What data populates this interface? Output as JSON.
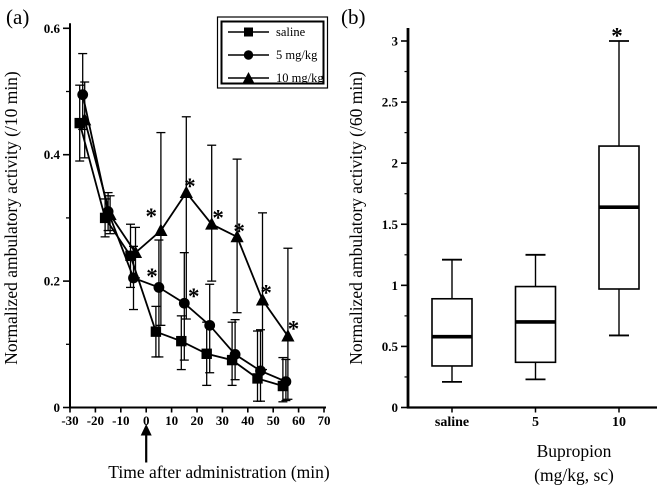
{
  "figure": {
    "panel_a_label": "(a)",
    "panel_b_label": "(b)",
    "background": "#ffffff",
    "ink": "#000000"
  },
  "chart_data": [
    {
      "id": "panel_a",
      "type": "line",
      "title": "",
      "xlabel": "Time after administration (min)",
      "ylabel": "Normalized ambulatory activity (/10 min)",
      "xlim": [
        -30,
        70
      ],
      "ylim": [
        0,
        0.6
      ],
      "xticks": [
        -30,
        -20,
        -10,
        0,
        10,
        20,
        30,
        40,
        50,
        60,
        70
      ],
      "xtick_labels": [
        "-30",
        "-20",
        "-10",
        "0",
        "10",
        "20",
        "30",
        "40",
        "50",
        "60",
        "70"
      ],
      "yticks": [
        0,
        0.2,
        0.4,
        0.6
      ],
      "ytick_labels": [
        "0",
        "0.2",
        "0.4",
        "0.6"
      ],
      "yticks_minor": [
        0.1,
        0.3,
        0.5
      ],
      "grid": false,
      "legend_position": "top-right",
      "injection_arrow_x": 0,
      "x": [
        -25,
        -15,
        -5,
        5,
        15,
        25,
        35,
        45,
        55
      ],
      "series": [
        {
          "name": "saline",
          "marker": "square",
          "values": [
            0.45,
            0.3,
            0.24,
            0.12,
            0.105,
            0.085,
            0.075,
            0.046,
            0.034
          ],
          "err_up": [
            0.06,
            0.03,
            0.05,
            0.04,
            0.04,
            0.05,
            0.06,
            0.075,
            0.045
          ],
          "err_down": [
            0.06,
            0.03,
            0.05,
            0.04,
            0.045,
            0.05,
            0.04,
            0.036,
            0.025
          ]
        },
        {
          "name": "5 mg/kg",
          "marker": "circle",
          "values": [
            0.495,
            0.31,
            0.205,
            0.19,
            0.165,
            0.13,
            0.084,
            0.058,
            0.041
          ],
          "err_up": [
            0.065,
            0.03,
            0.05,
            0.075,
            0.08,
            0.065,
            0.055,
            0.065,
            0.035
          ],
          "err_down": [
            0.055,
            0.03,
            0.05,
            0.11,
            0.09,
            0.075,
            0.04,
            0.048,
            0.03
          ]
        },
        {
          "name": "10 mg/kg",
          "marker": "triangle",
          "values": [
            0.455,
            0.305,
            0.245,
            0.28,
            0.34,
            0.29,
            0.27,
            0.17,
            0.113
          ],
          "err_up": [
            0.06,
            0.03,
            0.04,
            0.155,
            0.12,
            0.125,
            0.123,
            0.138,
            0.139
          ],
          "err_down": [
            0.06,
            0.03,
            0.04,
            0.15,
            0.2,
            0.09,
            0.12,
            0.11,
            0.1
          ]
        }
      ],
      "significance": [
        {
          "series": "5 mg/kg",
          "x": 2.3,
          "y": 0.213
        },
        {
          "series": "5 mg/kg",
          "x": 18.7,
          "y": 0.181
        },
        {
          "series": "10 mg/kg",
          "x": 2.0,
          "y": 0.308
        },
        {
          "series": "10 mg/kg",
          "x": 17.2,
          "y": 0.355
        },
        {
          "series": "10 mg/kg",
          "x": 28.3,
          "y": 0.305
        },
        {
          "series": "10 mg/kg",
          "x": 36.6,
          "y": 0.284
        },
        {
          "series": "10 mg/kg",
          "x": 47.2,
          "y": 0.187
        },
        {
          "series": "10 mg/kg",
          "x": 58.0,
          "y": 0.13
        }
      ]
    },
    {
      "id": "panel_b",
      "type": "box",
      "title": "",
      "xlabel": "Bupropion (mg/kg, sc)",
      "xlabel_lines": [
        "Bupropion",
        "(mg/kg, sc)"
      ],
      "ylabel": "Normalized ambulatory activity (/60 min)",
      "ylim": [
        0,
        3
      ],
      "yticks": [
        0,
        0.5,
        1,
        1.5,
        2,
        2.5,
        3
      ],
      "ytick_labels": [
        "0",
        "0.5",
        "1",
        "1.5",
        "2",
        "2.5",
        "3"
      ],
      "yticks_minor": [
        0.25,
        0.75,
        1.25,
        1.75,
        2.25,
        2.75
      ],
      "grid": false,
      "categories": [
        "saline",
        "5",
        "10"
      ],
      "boxes": [
        {
          "category": "saline",
          "whisker_low": 0.21,
          "q1": 0.34,
          "median": 0.58,
          "q3": 0.89,
          "whisker_high": 1.21,
          "star": false
        },
        {
          "category": "5",
          "whisker_low": 0.23,
          "q1": 0.37,
          "median": 0.7,
          "q3": 0.99,
          "whisker_high": 1.25,
          "star": false
        },
        {
          "category": "10",
          "whisker_low": 0.59,
          "q1": 0.97,
          "median": 1.64,
          "q3": 2.14,
          "whisker_high": 3.0,
          "star": true
        }
      ],
      "star_symbol": "*"
    }
  ]
}
